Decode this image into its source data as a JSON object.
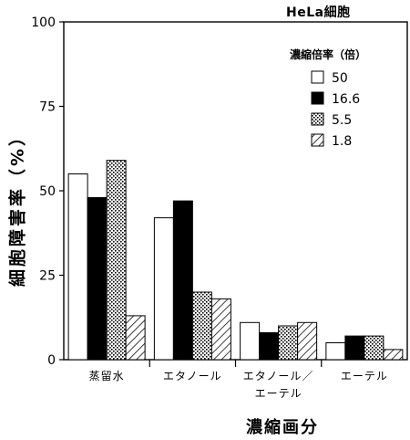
{
  "chart_data": {
    "type": "bar",
    "title": "HeLa細胞",
    "xlabel": "濃縮画分",
    "ylabel": "細胞障害率（%）",
    "ylim": [
      0,
      100
    ],
    "yticks": [
      0,
      25,
      50,
      75,
      100
    ],
    "categories": [
      [
        "蒸留水"
      ],
      [
        "エタノール"
      ],
      [
        "エタノール／",
        "エーテル"
      ],
      [
        "エーテル"
      ]
    ],
    "legend_title": "濃縮倍率（倍）",
    "legend_position": "top-right",
    "grid": false,
    "series": [
      {
        "name": "50",
        "fill": "white",
        "values": [
          55,
          42,
          11,
          5
        ]
      },
      {
        "name": "16.6",
        "fill": "black",
        "values": [
          48,
          47,
          8,
          7
        ]
      },
      {
        "name": "5.5",
        "fill": "dots",
        "values": [
          59,
          20,
          10,
          7
        ]
      },
      {
        "name": "1.8",
        "fill": "hatch",
        "values": [
          13,
          18,
          11,
          3
        ]
      }
    ],
    "colors": {
      "foreground": "#000000",
      "background": "#ffffff"
    }
  }
}
